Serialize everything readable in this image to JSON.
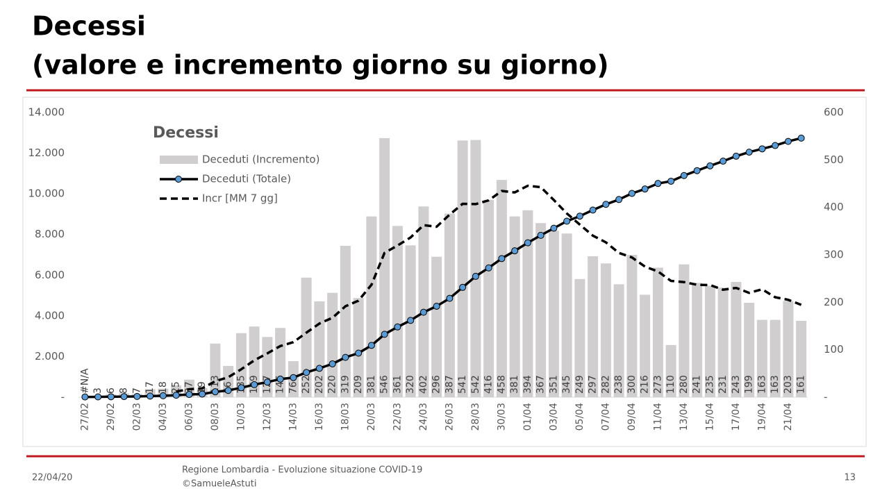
{
  "header": {
    "title": "Decessi",
    "subtitle": "(valore e incremento giorno su giorno)"
  },
  "chart_data": {
    "type": "combo",
    "title": "Decessi",
    "categories": [
      "27/02",
      null,
      "29/02",
      null,
      "02/03",
      null,
      "04/03",
      null,
      "06/03",
      null,
      "08/03",
      null,
      "10/03",
      null,
      "12/03",
      null,
      "14/03",
      null,
      "16/03",
      null,
      "18/03",
      null,
      "20/03",
      null,
      "22/03",
      null,
      "24/03",
      null,
      "26/03",
      null,
      "28/03",
      null,
      "30/03",
      null,
      "01/04",
      null,
      "03/04",
      null,
      "05/04",
      null,
      "07/04",
      null,
      "09/04",
      null,
      "11/04",
      null,
      "13/04",
      null,
      "15/04",
      null,
      "17/04",
      null,
      "19/04",
      null,
      "21/04",
      null
    ],
    "ylim": [
      0,
      14000
    ],
    "yticks": [
      {
        "value": 0,
        "label": "-"
      },
      {
        "value": 2000,
        "label": "2.000"
      },
      {
        "value": 4000,
        "label": "4.000"
      },
      {
        "value": 6000,
        "label": "6.000"
      },
      {
        "value": 8000,
        "label": "8.000"
      },
      {
        "value": 10000,
        "label": "10.000"
      },
      {
        "value": 12000,
        "label": "12.000"
      },
      {
        "value": 14000,
        "label": "14.000"
      }
    ],
    "y2lim": [
      0,
      600
    ],
    "y2ticks": [
      {
        "value": 0,
        "label": "-"
      },
      100,
      200,
      300,
      400,
      500,
      600
    ],
    "grid": false,
    "series": [
      {
        "name": "Deceduti (Incremento)",
        "type": "bar",
        "axis": "y2",
        "color": "#d0cecf",
        "values": [
          null,
          3,
          6,
          8,
          7,
          17,
          18,
          25,
          37,
          19,
          113,
          66,
          135,
          149,
          127,
          146,
          76,
          252,
          202,
          220,
          319,
          209,
          381,
          546,
          361,
          320,
          402,
          296,
          387,
          541,
          542,
          416,
          458,
          381,
          394,
          367,
          351,
          345,
          249,
          297,
          282,
          238,
          300,
          216,
          273,
          110,
          280,
          241,
          235,
          231,
          243,
          199,
          163,
          163,
          203,
          161
        ],
        "value_labels": [
          "#N/A",
          "3",
          "6",
          "8",
          "7",
          "17",
          "18",
          "25",
          "37",
          "19",
          "113",
          "66",
          "135",
          "149",
          "127",
          "146",
          "76",
          "252",
          "202",
          "220",
          "319",
          "209",
          "381",
          "546",
          "361",
          "320",
          "402",
          "296",
          "387",
          "541",
          "542",
          "416",
          "458",
          "381",
          "394",
          "367",
          "351",
          "345",
          "249",
          "297",
          "282",
          "238",
          "300",
          "216",
          "273",
          "110",
          "280",
          "241",
          "235",
          "231",
          "243",
          "199",
          "163",
          "163",
          "203",
          "161"
        ]
      },
      {
        "name": "Deceduti (Totale)",
        "type": "line",
        "color": "#000000",
        "marker_color": "#5b9bd5",
        "values": [
          14,
          17,
          23,
          31,
          38,
          55,
          73,
          98,
          135,
          154,
          267,
          333,
          468,
          617,
          744,
          890,
          966,
          1218,
          1420,
          1640,
          1959,
          2168,
          2549,
          3095,
          3456,
          3776,
          4178,
          4474,
          4861,
          5402,
          5944,
          6360,
          6818,
          7199,
          7593,
          7960,
          8311,
          8656,
          8905,
          9202,
          9484,
          9722,
          10022,
          10238,
          10511,
          10621,
          10901,
          11142,
          11377,
          11608,
          11851,
          12050,
          12213,
          12376,
          12579,
          12740
        ]
      },
      {
        "name": "Incr [MM 7 gg]",
        "type": "line",
        "axis": "y2",
        "dashed": true,
        "color": "#000000",
        "values": [
          null,
          null,
          null,
          null,
          null,
          null,
          null,
          12,
          16.9,
          18.7,
          33.7,
          42.1,
          59,
          77.7,
          92.3,
          107.9,
          116,
          135.9,
          155.3,
          167.4,
          191.7,
          203.4,
          237,
          304.1,
          319.7,
          336.6,
          362.6,
          359.3,
          384.7,
          407.6,
          407,
          414.9,
          434.6,
          431.6,
          445.6,
          442.7,
          415.6,
          387.4,
          363.6,
          340.6,
          326.4,
          304.1,
          294.6,
          275.3,
          265,
          245.1,
          242.7,
          236.9,
          236.4,
          226.6,
          230.4,
          219.9,
          227.4,
          210.7,
          205.3,
          194.7
        ]
      }
    ]
  },
  "footer": {
    "date": "22/04/20",
    "source": "Regione Lombardia - Evoluzione situazione COVID-19",
    "author": "©SamueleAstuti",
    "page": "13"
  }
}
